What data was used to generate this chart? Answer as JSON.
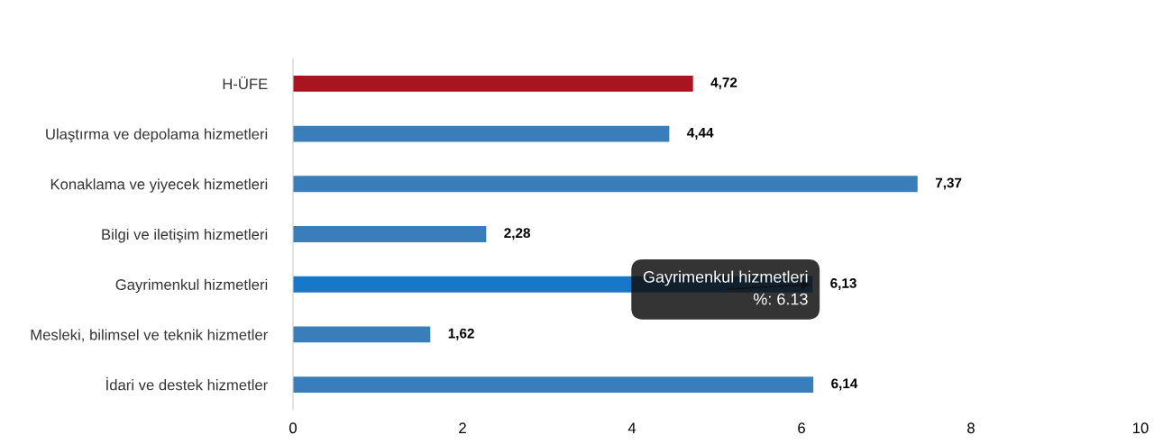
{
  "chart_data": {
    "type": "bar",
    "orientation": "horizontal",
    "categories": [
      "H-ÜFE",
      "Ulaştırma ve depolama hizmetleri",
      "Konaklama ve yiyecek hizmetleri",
      "Bilgi ve iletişim hizmetleri",
      "Gayrimenkul hizmetleri",
      "Mesleki, bilimsel ve teknik hizmetler",
      "İdari ve destek hizmetler"
    ],
    "values": [
      4.72,
      4.44,
      7.37,
      2.28,
      6.13,
      1.62,
      6.14
    ],
    "colors": [
      "#a8141f",
      "#3a7dbb",
      "#3a7dbb",
      "#3a7dbb",
      "#1777c9",
      "#3a7dbb",
      "#3a7dbb"
    ],
    "value_labels": [
      "4,72",
      "4,44",
      "7,37",
      "2,28",
      "6,13",
      "1,62",
      "6,14"
    ],
    "xlim": [
      0,
      10
    ],
    "xticks": [
      0,
      2,
      4,
      6,
      8,
      10
    ],
    "grid": false,
    "annotations": [
      {
        "text": "Gayrimenkul hizmetleri\n%: 6.13",
        "x": 6.13,
        "y": "Gayrimenkul hizmetleri"
      }
    ]
  }
}
